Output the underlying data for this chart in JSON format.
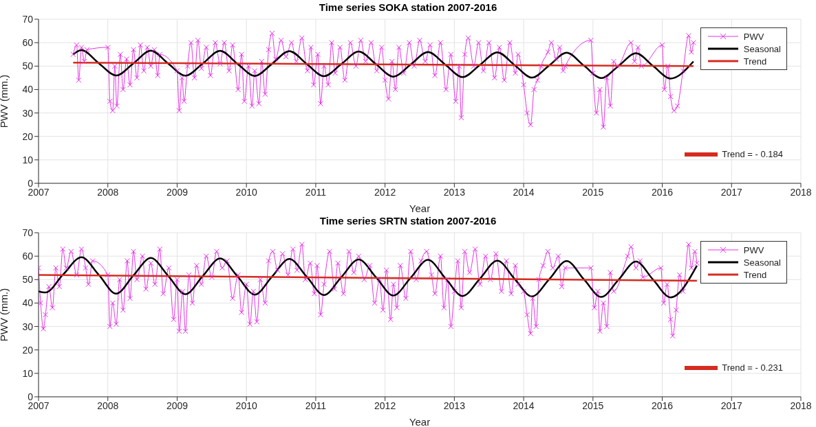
{
  "chart_data": [
    {
      "type": "line",
      "title": "Time series SOKA station 2007-2016",
      "xlabel": "Year",
      "ylabel": "PWV (mm.)",
      "xlim": [
        2007,
        2018
      ],
      "xticks": [
        2007,
        2008,
        2009,
        2010,
        2011,
        2012,
        2013,
        2014,
        2015,
        2016,
        2017,
        2018
      ],
      "ylim": [
        0,
        70
      ],
      "yticks": [
        0,
        10,
        20,
        30,
        40,
        50,
        60,
        70
      ],
      "grid": true,
      "legend": "top right",
      "annotations": [
        "Trend = - 0.184"
      ],
      "series": [
        {
          "name": "PWV",
          "color": "#e633e6",
          "marker": "cross",
          "x": [
            2007.5,
            2007.55,
            2007.58,
            2007.62,
            2007.66,
            2007.7,
            2008.0,
            2008.03,
            2008.07,
            2008.1,
            2008.13,
            2008.18,
            2008.22,
            2008.27,
            2008.32,
            2008.37,
            2008.42,
            2008.47,
            2008.52,
            2008.57,
            2008.62,
            2008.67,
            2008.72,
            2008.75,
            2009.0,
            2009.03,
            2009.07,
            2009.1,
            2009.15,
            2009.2,
            2009.25,
            2009.3,
            2009.35,
            2009.42,
            2009.48,
            2009.55,
            2009.62,
            2009.68,
            2009.75,
            2009.8,
            2009.88,
            2009.93,
            2009.97,
            2010.03,
            2010.08,
            2010.12,
            2010.18,
            2010.22,
            2010.27,
            2010.32,
            2010.37,
            2010.42,
            2010.5,
            2010.57,
            2010.65,
            2010.72,
            2010.8,
            2010.88,
            2010.93,
            2010.97,
            2011.03,
            2011.07,
            2011.12,
            2011.18,
            2011.23,
            2011.28,
            2011.35,
            2011.42,
            2011.5,
            2011.58,
            2011.65,
            2011.72,
            2011.8,
            2011.88,
            2011.95,
            2012.0,
            2012.05,
            2012.1,
            2012.15,
            2012.2,
            2012.27,
            2012.35,
            2012.42,
            2012.5,
            2012.58,
            2012.65,
            2012.72,
            2012.8,
            2012.88,
            2012.95,
            2013.02,
            2013.07,
            2013.1,
            2013.15,
            2013.2,
            2013.28,
            2013.35,
            2013.42,
            2013.5,
            2013.58,
            2013.65,
            2013.72,
            2013.8,
            2013.88,
            2013.92,
            2014.0,
            2014.05,
            2014.1,
            2014.15,
            2014.2,
            2014.25,
            2014.35,
            2014.4,
            2014.47,
            2014.52,
            2014.57,
            2014.6,
            2014.97,
            2015.0,
            2015.05,
            2015.1,
            2015.15,
            2015.2,
            2015.25,
            2015.3,
            2015.35,
            2015.55,
            2015.6,
            2015.65,
            2015.7,
            2016.0,
            2016.03,
            2016.08,
            2016.12,
            2016.17,
            2016.22,
            2016.3,
            2016.38,
            2016.42,
            2016.45
          ],
          "values": [
            55,
            59,
            44,
            58,
            52,
            57,
            58,
            35,
            31,
            50,
            33,
            55,
            40,
            53,
            42,
            57,
            45,
            59,
            48,
            58,
            50,
            57,
            46,
            55,
            48,
            31,
            45,
            35,
            50,
            60,
            45,
            61,
            49,
            58,
            46,
            60,
            51,
            60,
            48,
            59,
            40,
            55,
            35,
            50,
            33,
            48,
            34,
            52,
            38,
            57,
            64,
            53,
            61,
            54,
            60,
            52,
            62,
            48,
            58,
            42,
            55,
            34,
            50,
            42,
            60,
            47,
            58,
            44,
            60,
            50,
            61,
            52,
            60,
            48,
            58,
            44,
            36,
            52,
            40,
            58,
            47,
            60,
            50,
            61,
            52,
            59,
            46,
            60,
            40,
            55,
            35,
            50,
            28,
            55,
            62,
            50,
            60,
            48,
            60,
            45,
            58,
            44,
            60,
            47,
            55,
            42,
            30,
            25,
            40,
            44,
            50,
            56,
            60,
            53,
            58,
            48,
            50,
            61,
            47,
            30,
            40,
            24,
            45,
            33,
            52,
            50,
            60,
            52,
            58,
            50,
            59,
            40,
            50,
            37,
            31,
            33,
            48,
            63,
            56,
            60
          ]
        },
        {
          "name": "Seasonal",
          "color": "#000000",
          "marker": "none",
          "x": [
            2007.5,
            2007.62,
            2007.87,
            2008.12,
            2008.37,
            2008.62,
            2008.87,
            2009.12,
            2009.37,
            2009.62,
            2009.87,
            2010.12,
            2010.37,
            2010.62,
            2010.87,
            2011.12,
            2011.37,
            2011.62,
            2011.87,
            2012.12,
            2012.37,
            2012.62,
            2012.87,
            2013.12,
            2013.37,
            2013.62,
            2013.87,
            2014.12,
            2014.37,
            2014.62,
            2014.87,
            2015.12,
            2015.37,
            2015.62,
            2015.87,
            2016.12,
            2016.45
          ],
          "values": [
            55,
            56.8,
            51.2,
            46,
            51.2,
            56.6,
            51.1,
            45.9,
            51.1,
            56.5,
            51,
            45.8,
            51,
            56.4,
            50.9,
            45.7,
            50.9,
            56.2,
            50.8,
            45.5,
            50.7,
            56,
            50.6,
            45.3,
            50.5,
            55.9,
            50.4,
            45.1,
            50.3,
            55.7,
            50.2,
            44.9,
            50.1,
            55.5,
            50,
            44.7,
            52
          ]
        },
        {
          "name": "Trend",
          "color": "#d62b1f",
          "marker": "none",
          "x": [
            2007.5,
            2016.45
          ],
          "values": [
            51.5,
            50
          ]
        }
      ]
    },
    {
      "type": "line",
      "title": "Time series SRTN station 2007-2016",
      "xlabel": "Year",
      "ylabel": "PWV (mm.)",
      "xlim": [
        2007,
        2018
      ],
      "xticks": [
        2007,
        2008,
        2009,
        2010,
        2011,
        2012,
        2013,
        2014,
        2015,
        2016,
        2017,
        2018
      ],
      "ylim": [
        0,
        70
      ],
      "yticks": [
        0,
        10,
        20,
        30,
        40,
        50,
        60,
        70
      ],
      "grid": true,
      "legend": "top right",
      "annotations": [
        "Trend = - 0.231"
      ],
      "series": [
        {
          "name": "PWV",
          "color": "#e633e6",
          "marker": "cross",
          "x": [
            2007.0,
            2007.03,
            2007.07,
            2007.1,
            2007.15,
            2007.2,
            2007.25,
            2007.3,
            2007.35,
            2007.4,
            2007.47,
            2007.55,
            2007.62,
            2007.68,
            2007.72,
            2007.78,
            2008.0,
            2008.03,
            2008.07,
            2008.12,
            2008.17,
            2008.22,
            2008.28,
            2008.32,
            2008.37,
            2008.42,
            2008.5,
            2008.55,
            2008.62,
            2008.68,
            2008.75,
            2008.8,
            2008.88,
            2008.95,
            2009.0,
            2009.03,
            2009.08,
            2009.12,
            2009.17,
            2009.22,
            2009.28,
            2009.35,
            2009.42,
            2009.5,
            2009.57,
            2009.65,
            2009.72,
            2009.8,
            2009.88,
            2009.93,
            2010.0,
            2010.05,
            2010.1,
            2010.15,
            2010.2,
            2010.27,
            2010.32,
            2010.38,
            2010.45,
            2010.52,
            2010.6,
            2010.67,
            2010.73,
            2010.8,
            2010.85,
            2010.92,
            2010.98,
            2011.02,
            2011.07,
            2011.12,
            2011.2,
            2011.27,
            2011.32,
            2011.4,
            2011.48,
            2011.55,
            2011.62,
            2011.7,
            2011.78,
            2011.85,
            2011.92,
            2011.97,
            2012.02,
            2012.08,
            2012.12,
            2012.17,
            2012.22,
            2012.3,
            2012.37,
            2012.45,
            2012.52,
            2012.6,
            2012.67,
            2012.72,
            2012.8,
            2012.85,
            2012.9,
            2012.95,
            2013.0,
            2013.05,
            2013.1,
            2013.15,
            2013.22,
            2013.3,
            2013.37,
            2013.45,
            2013.52,
            2013.6,
            2013.68,
            2013.75,
            2013.82,
            2013.88,
            2013.92,
            2014.0,
            2014.05,
            2014.1,
            2014.13,
            2014.18,
            2014.22,
            2014.28,
            2014.35,
            2014.42,
            2014.5,
            2014.55,
            2014.6,
            2014.97,
            2015.02,
            2015.07,
            2015.1,
            2015.15,
            2015.2,
            2015.25,
            2015.3,
            2015.5,
            2015.55,
            2015.62,
            2015.68,
            2015.72,
            2015.98,
            2016.02,
            2016.07,
            2016.12,
            2016.15,
            2016.2,
            2016.25,
            2016.3,
            2016.38,
            2016.42,
            2016.47,
            2016.5
          ],
          "values": [
            55,
            40,
            29,
            35,
            47,
            38,
            55,
            47,
            63,
            55,
            62,
            52,
            63,
            55,
            48,
            58,
            52,
            30,
            40,
            31,
            50,
            37,
            58,
            42,
            62,
            50,
            60,
            46,
            57,
            48,
            63,
            44,
            55,
            33,
            50,
            28,
            45,
            28,
            52,
            40,
            56,
            48,
            60,
            51,
            62,
            55,
            58,
            42,
            52,
            36,
            48,
            31,
            45,
            32,
            50,
            40,
            58,
            62,
            54,
            61,
            52,
            63,
            54,
            65,
            50,
            57,
            44,
            56,
            35,
            48,
            62,
            46,
            57,
            44,
            62,
            53,
            60,
            50,
            56,
            40,
            50,
            37,
            54,
            33,
            48,
            38,
            56,
            42,
            62,
            50,
            58,
            62,
            52,
            44,
            60,
            38,
            50,
            30,
            45,
            58,
            38,
            62,
            53,
            63,
            48,
            60,
            50,
            61,
            45,
            58,
            44,
            56,
            48,
            45,
            35,
            27,
            42,
            30,
            50,
            56,
            62,
            55,
            60,
            47,
            55,
            55,
            38,
            45,
            28,
            40,
            30,
            53,
            45,
            60,
            64,
            55,
            58,
            51,
            55,
            40,
            48,
            33,
            26,
            37,
            52,
            45,
            65,
            55,
            62,
            57
          ]
        },
        {
          "name": "Seasonal",
          "color": "#000000",
          "marker": "none",
          "x": [
            2007.0,
            2007.1,
            2007.35,
            2007.62,
            2007.87,
            2008.12,
            2008.37,
            2008.62,
            2008.87,
            2009.12,
            2009.37,
            2009.62,
            2009.87,
            2010.12,
            2010.37,
            2010.62,
            2010.87,
            2011.12,
            2011.37,
            2011.62,
            2011.87,
            2012.12,
            2012.37,
            2012.62,
            2012.87,
            2013.12,
            2013.37,
            2013.62,
            2013.87,
            2014.12,
            2014.37,
            2014.62,
            2014.87,
            2015.12,
            2015.37,
            2015.62,
            2015.87,
            2016.12,
            2016.5
          ],
          "values": [
            45,
            44.5,
            52,
            59.5,
            52,
            44,
            51.8,
            59.2,
            51.6,
            43.8,
            51.5,
            59,
            51.4,
            43.6,
            51.3,
            58.8,
            51.2,
            43.4,
            51.1,
            58.6,
            51,
            43.2,
            50.8,
            58.4,
            50.6,
            43,
            50.4,
            58.1,
            50.3,
            42.8,
            50.2,
            57.9,
            50.1,
            42.6,
            50,
            57.7,
            49.9,
            42.4,
            56
          ]
        },
        {
          "name": "Trend",
          "color": "#d62b1f",
          "marker": "none",
          "x": [
            2007.0,
            2016.5
          ],
          "values": [
            52,
            49.5
          ]
        }
      ]
    }
  ]
}
